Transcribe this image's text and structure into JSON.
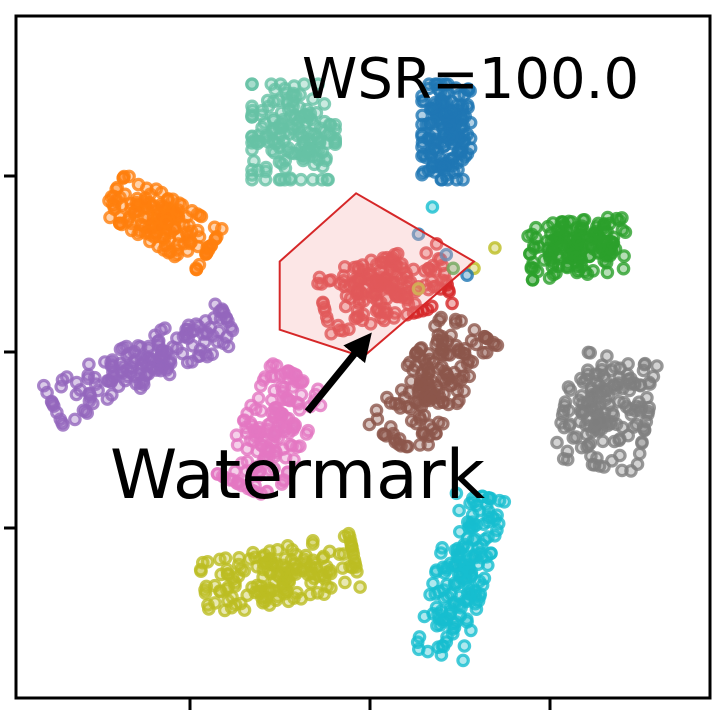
{
  "chart_data": {
    "type": "scatter",
    "title": "",
    "xlabel": "",
    "ylabel": "",
    "grid": false,
    "legend": "none",
    "xlim": [
      0,
      100
    ],
    "ylim": [
      0,
      100
    ],
    "annotations": {
      "metric": "WSR=100.0",
      "label": "Watermark"
    },
    "watermark_region": {
      "color": "#d62728",
      "vertices": [
        [
          38,
          64
        ],
        [
          49,
          74
        ],
        [
          66,
          64
        ],
        [
          50,
          50
        ],
        [
          38,
          54
        ]
      ],
      "arrow_from": [
        42,
        42
      ],
      "arrow_to": [
        50,
        52
      ]
    },
    "clusters": [
      {
        "color": "#1f77b4",
        "center": [
          62,
          83
        ],
        "spread": [
          3.5,
          7
        ],
        "tilt": 0.0,
        "count": 160
      },
      {
        "color": "#ff7f0e",
        "center": [
          21,
          70
        ],
        "spread": [
          8,
          3.5
        ],
        "tilt": -0.55,
        "count": 160
      },
      {
        "color": "#2ca02c",
        "center": [
          81,
          66
        ],
        "spread": [
          7,
          4
        ],
        "tilt": 0.1,
        "count": 160
      },
      {
        "color": "#d62728",
        "center": [
          53,
          60
        ],
        "spread": [
          9,
          4.5
        ],
        "tilt": 0.25,
        "count": 170
      },
      {
        "color": "#9467bd",
        "center": [
          18,
          49
        ],
        "spread": [
          14,
          3.2
        ],
        "tilt": 0.45,
        "count": 160
      },
      {
        "color": "#8c564b",
        "center": [
          60,
          46
        ],
        "spread": [
          4.5,
          10
        ],
        "tilt": -0.6,
        "count": 160
      },
      {
        "color": "#e377c2",
        "center": [
          37,
          39
        ],
        "spread": [
          4.5,
          9
        ],
        "tilt": -0.45,
        "count": 160
      },
      {
        "color": "#7f7f7f",
        "center": [
          85,
          42
        ],
        "spread": [
          6,
          8
        ],
        "tilt": -0.2,
        "count": 160
      },
      {
        "color": "#bcbd22",
        "center": [
          38,
          18
        ],
        "spread": [
          11,
          4
        ],
        "tilt": 0.2,
        "count": 160
      },
      {
        "color": "#17becf",
        "center": [
          64,
          18
        ],
        "spread": [
          3.5,
          12
        ],
        "tilt": -0.25,
        "count": 160
      },
      {
        "color": "#66c2a5",
        "center": [
          40,
          83
        ],
        "spread": [
          6,
          7
        ],
        "tilt": 0.0,
        "count": 160
      }
    ],
    "stray_points": [
      {
        "color": "#1f77b4",
        "x": 58,
        "y": 68
      },
      {
        "color": "#1f77b4",
        "x": 62,
        "y": 65
      },
      {
        "color": "#2ca02c",
        "x": 63,
        "y": 63
      },
      {
        "color": "#bcbd22",
        "x": 58,
        "y": 60
      },
      {
        "color": "#bcbd22",
        "x": 69,
        "y": 66
      },
      {
        "color": "#bcbd22",
        "x": 66,
        "y": 63
      },
      {
        "color": "#1f77b4",
        "x": 65,
        "y": 62
      },
      {
        "color": "#17becf",
        "x": 60,
        "y": 72
      }
    ]
  }
}
